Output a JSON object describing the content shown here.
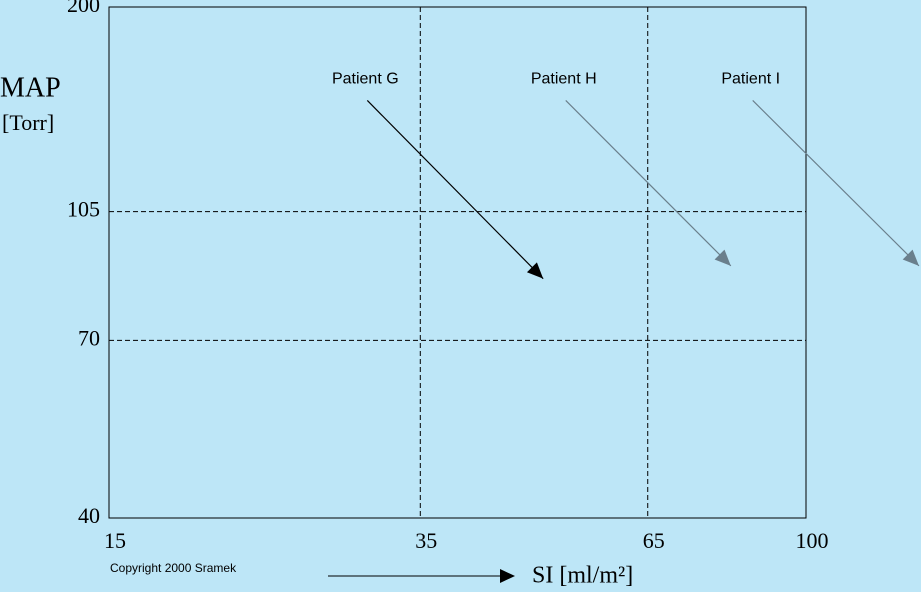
{
  "chart_data": {
    "type": "line",
    "x_label": "SI [ml/m²]",
    "y_label": [
      "MAP",
      "[Torr]"
    ],
    "annotation": "Copyright 2000 Sramek",
    "xlim": [
      15,
      100
    ],
    "xticks": [
      15,
      35,
      65,
      100
    ],
    "xscale": "log",
    "ylim": [
      40,
      200
    ],
    "yticks": [
      40,
      70,
      105,
      200
    ],
    "yscale": "log",
    "grid": true,
    "series": [
      {
        "name": "Patient G",
        "color": "#000000",
        "x": [
          30.3,
          48.9
        ],
        "values": [
          149,
          85
        ]
      },
      {
        "name": "Patient H",
        "color": "#6a7f8c",
        "x": [
          52,
          81.5
        ],
        "values": [
          149,
          88.5
        ]
      },
      {
        "name": "Patient I",
        "color": "#6a7f8c",
        "x": [
          86.5,
          136
        ],
        "values": [
          149,
          88.5
        ]
      }
    ]
  }
}
